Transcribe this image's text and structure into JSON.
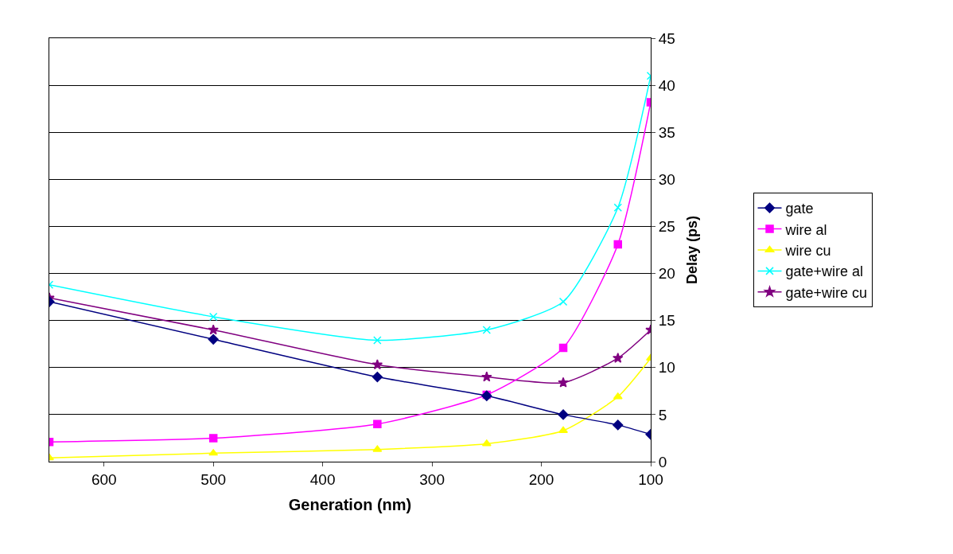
{
  "chart_data": {
    "type": "line",
    "xlabel": "Generation (nm)",
    "ylabel": "Delay (ps)",
    "x": [
      650,
      500,
      350,
      250,
      180,
      130,
      100
    ],
    "xlim": [
      650,
      100
    ],
    "xticks": [
      600,
      500,
      400,
      300,
      200,
      100
    ],
    "ylim": [
      0,
      45
    ],
    "yticks": [
      0,
      5,
      10,
      15,
      20,
      25,
      30,
      35,
      40,
      45
    ],
    "grid": "y",
    "legend": "right",
    "series": [
      {
        "name": "gate",
        "color": "#000080",
        "marker": "diamond",
        "values": [
          17,
          13,
          9,
          7,
          5,
          3.9,
          2.9
        ]
      },
      {
        "name": "wire al",
        "color": "#ff00ff",
        "marker": "square",
        "values": [
          2.1,
          2.5,
          4.0,
          7.1,
          12.1,
          23.1,
          38.2
        ]
      },
      {
        "name": "wire cu",
        "color": "#ffff00",
        "marker": "triangle",
        "values": [
          0.4,
          0.9,
          1.3,
          1.9,
          3.3,
          6.9,
          11.0
        ]
      },
      {
        "name": "gate+wire al",
        "color": "#00ffff",
        "marker": "cross",
        "values": [
          18.8,
          15.4,
          12.9,
          14.0,
          17.0,
          27.0,
          41.0
        ]
      },
      {
        "name": "gate+wire cu",
        "color": "#800080",
        "marker": "star",
        "values": [
          17.4,
          14.0,
          10.3,
          9.0,
          8.4,
          11.0,
          14.0
        ]
      }
    ]
  }
}
